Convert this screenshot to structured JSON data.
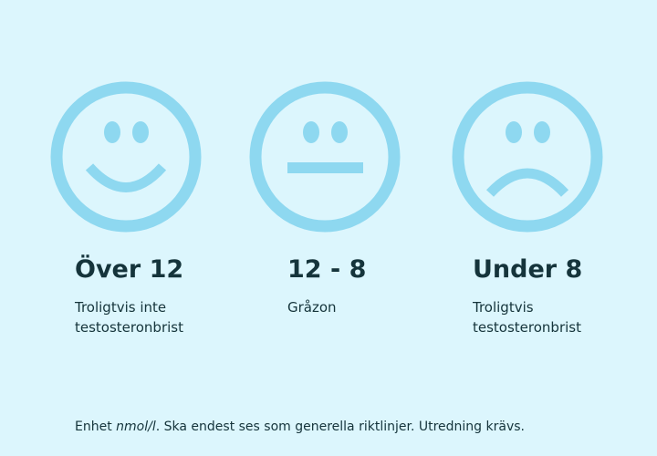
{
  "items": [
    {
      "title": "Över 12",
      "description": "Troligtvis inte testosteronbrist"
    },
    {
      "title": "12 - 8",
      "description": "Gråzon"
    },
    {
      "title": "Under 8",
      "description": "Troligtvis testosteronbrist"
    }
  ],
  "footer": {
    "prefix": "Enhet ",
    "unit": "nmol/l",
    "rest": ". Ska endest ses som generella riktlinjer. Utredning krävs."
  }
}
